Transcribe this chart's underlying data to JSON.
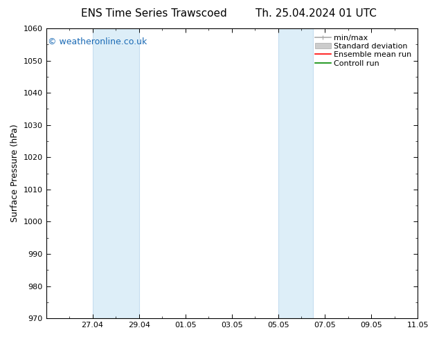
{
  "title_left": "ENS Time Series Trawscoed",
  "title_right": "Th. 25.04.2024 01 UTC",
  "ylabel": "Surface Pressure (hPa)",
  "ylim": [
    970,
    1060
  ],
  "yticks": [
    970,
    980,
    990,
    1000,
    1010,
    1020,
    1030,
    1040,
    1050,
    1060
  ],
  "bg_color": "#ffffff",
  "plot_bg_color": "#ffffff",
  "shade_color": "#ddeef8",
  "shade_border_color": "#c5ddf0",
  "watermark": "© weatheronline.co.uk",
  "watermark_color": "#1a6ab5",
  "shade_bands": [
    {
      "xstart": 2,
      "xend": 4
    },
    {
      "xstart": 10,
      "xend": 11.5
    }
  ],
  "xtick_labels": [
    "27.04",
    "29.04",
    "01.05",
    "03.05",
    "05.05",
    "07.05",
    "09.05",
    "11.05"
  ],
  "xtick_positions": [
    2,
    4,
    6,
    8,
    10,
    12,
    14,
    16
  ],
  "xlim": [
    0,
    16
  ],
  "legend_items": [
    {
      "label": "min/max",
      "color": "#aaaaaa",
      "lw": 1.2
    },
    {
      "label": "Standard deviation",
      "color": "#cccccc",
      "lw": 5
    },
    {
      "label": "Ensemble mean run",
      "color": "#ff0000",
      "lw": 1.2
    },
    {
      "label": "Controll run",
      "color": "#008800",
      "lw": 1.2
    }
  ],
  "tick_color": "#000000",
  "spine_color": "#000000",
  "title_fontsize": 11,
  "label_fontsize": 9,
  "tick_fontsize": 8,
  "legend_fontsize": 8,
  "watermark_fontsize": 9
}
